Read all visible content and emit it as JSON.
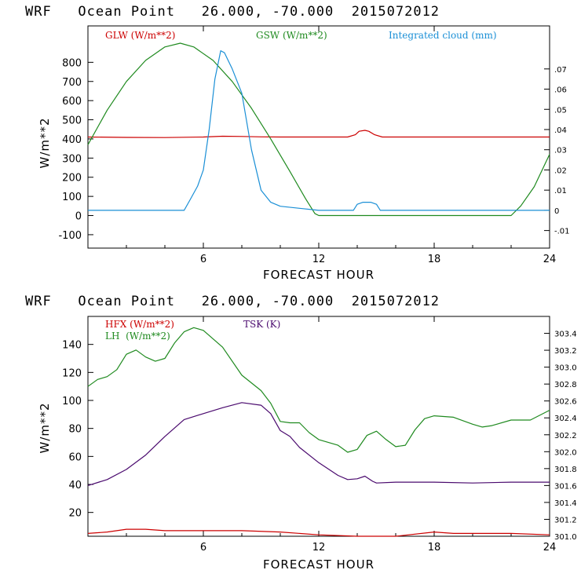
{
  "chart_data": [
    {
      "type": "line",
      "title": "WRF   Ocean Point   26.000, -70.000  2015072012",
      "xlabel": "FORECAST HOUR",
      "ylabel": "W/m**2",
      "xlim": [
        0,
        24
      ],
      "ylim": [
        -170,
        990
      ],
      "x_ticks": [
        6,
        12,
        18,
        24
      ],
      "y_ticks": [
        -100,
        0,
        100,
        200,
        300,
        400,
        500,
        600,
        700,
        800
      ],
      "y2lim": [
        -0.0187,
        0.0913
      ],
      "y2_ticks": [
        -0.01,
        0,
        0.01,
        0.02,
        0.03,
        0.04,
        0.05,
        0.06,
        0.07
      ],
      "y2_tick_labels": [
        "-.01",
        "0",
        ".01",
        ".02",
        ".03",
        ".04",
        ".05",
        ".06",
        ".07"
      ],
      "series": [
        {
          "name": "GLW (W/m**2)",
          "color": "#cc0000",
          "axis": "left",
          "points": [
            [
              0,
              410
            ],
            [
              2,
              408
            ],
            [
              4,
              407
            ],
            [
              6,
              410
            ],
            [
              7,
              414
            ],
            [
              8,
              413
            ],
            [
              9,
              411
            ],
            [
              10,
              410
            ],
            [
              12,
              410
            ],
            [
              13.5,
              410
            ],
            [
              13.9,
              422
            ],
            [
              14.1,
              440
            ],
            [
              14.4,
              445
            ],
            [
              14.6,
              440
            ],
            [
              14.9,
              422
            ],
            [
              15.3,
              410
            ],
            [
              18,
              410
            ],
            [
              20,
              410
            ],
            [
              22,
              410
            ],
            [
              24,
              410
            ]
          ]
        },
        {
          "name": "GSW (W/m**2)",
          "color": "#1f8a1f",
          "axis": "left",
          "points": [
            [
              0,
              370
            ],
            [
              1,
              550
            ],
            [
              2,
              700
            ],
            [
              3,
              810
            ],
            [
              4,
              880
            ],
            [
              4.8,
              900
            ],
            [
              5.5,
              880
            ],
            [
              6.5,
              810
            ],
            [
              7.5,
              700
            ],
            [
              8.5,
              560
            ],
            [
              9.5,
              400
            ],
            [
              10.5,
              230
            ],
            [
              11.3,
              90
            ],
            [
              11.8,
              10
            ],
            [
              12,
              0
            ],
            [
              22,
              0
            ],
            [
              22.5,
              50
            ],
            [
              23.2,
              150
            ],
            [
              24,
              320
            ]
          ]
        },
        {
          "name": "Integrated cloud (mm)",
          "color": "#1a8fd6",
          "axis": "right",
          "points": [
            [
              0,
              0
            ],
            [
              5,
              0
            ],
            [
              5.3,
              0.005
            ],
            [
              5.7,
              0.012
            ],
            [
              6,
              0.02
            ],
            [
              6.3,
              0.04
            ],
            [
              6.6,
              0.065
            ],
            [
              6.9,
              0.079
            ],
            [
              7.1,
              0.078
            ],
            [
              7.5,
              0.07
            ],
            [
              8,
              0.058
            ],
            [
              8.5,
              0.03
            ],
            [
              9,
              0.01
            ],
            [
              9.5,
              0.004
            ],
            [
              10,
              0.002
            ],
            [
              11,
              0.001
            ],
            [
              12,
              0
            ],
            [
              13.8,
              0
            ],
            [
              14,
              0.003
            ],
            [
              14.3,
              0.004
            ],
            [
              14.7,
              0.004
            ],
            [
              15,
              0.003
            ],
            [
              15.2,
              0
            ],
            [
              24,
              0
            ]
          ]
        }
      ]
    },
    {
      "type": "line",
      "title": "WRF   Ocean Point   26.000, -70.000  2015072012",
      "xlabel": "FORECAST HOUR",
      "ylabel": "W/m**2",
      "xlim": [
        0,
        24
      ],
      "ylim": [
        3,
        160
      ],
      "x_ticks": [
        6,
        12,
        18,
        24
      ],
      "y_ticks": [
        20,
        40,
        60,
        80,
        100,
        120,
        140
      ],
      "y2lim": [
        301.0,
        303.6
      ],
      "y2_ticks": [
        301.0,
        301.2,
        301.4,
        301.6,
        301.8,
        302.0,
        302.2,
        302.4,
        302.6,
        302.8,
        303.0,
        303.2,
        303.4
      ],
      "y2_tick_labels": [
        "301.0",
        "301.2",
        "301.4",
        "301.6",
        "301.8",
        "302.0",
        "302.2",
        "302.4",
        "302.6",
        "302.8",
        "303.0",
        "303.2",
        "303.4"
      ],
      "series": [
        {
          "name": "HFX (W/m**2)",
          "color": "#cc0000",
          "axis": "left",
          "points": [
            [
              0,
              5
            ],
            [
              1,
              6
            ],
            [
              2,
              8
            ],
            [
              3,
              8
            ],
            [
              4,
              7
            ],
            [
              6,
              7
            ],
            [
              8,
              7
            ],
            [
              10,
              6
            ],
            [
              12,
              4
            ],
            [
              14,
              3
            ],
            [
              16,
              3
            ],
            [
              18,
              6
            ],
            [
              19,
              5
            ],
            [
              20,
              5
            ],
            [
              22,
              5
            ],
            [
              24,
              4
            ]
          ]
        },
        {
          "name": "LH  (W/m**2)",
          "color": "#1f8a1f",
          "axis": "left",
          "points": [
            [
              0,
              110
            ],
            [
              0.5,
              115
            ],
            [
              1,
              117
            ],
            [
              1.5,
              122
            ],
            [
              2,
              133
            ],
            [
              2.5,
              136
            ],
            [
              3,
              131
            ],
            [
              3.5,
              128
            ],
            [
              4,
              130
            ],
            [
              4.5,
              141
            ],
            [
              5,
              149
            ],
            [
              5.5,
              152
            ],
            [
              6,
              150
            ],
            [
              7,
              138
            ],
            [
              8,
              118
            ],
            [
              9,
              107
            ],
            [
              9.5,
              98
            ],
            [
              10,
              85
            ],
            [
              10.5,
              84
            ],
            [
              11,
              84
            ],
            [
              11.5,
              77
            ],
            [
              12,
              72
            ],
            [
              13,
              68
            ],
            [
              13.5,
              63
            ],
            [
              14,
              65
            ],
            [
              14.5,
              75
            ],
            [
              15,
              78
            ],
            [
              15.5,
              72
            ],
            [
              16,
              67
            ],
            [
              16.5,
              68
            ],
            [
              17,
              79
            ],
            [
              17.5,
              87
            ],
            [
              18,
              89
            ],
            [
              19,
              88
            ],
            [
              20,
              83
            ],
            [
              20.5,
              81
            ],
            [
              21,
              82
            ],
            [
              22,
              86
            ],
            [
              23,
              86
            ],
            [
              24,
              93
            ]
          ]
        },
        {
          "name": "TSK (K)",
          "color": "#4a0a6e",
          "axis": "right",
          "points": [
            [
              0,
              301.6
            ],
            [
              1,
              301.67
            ],
            [
              2,
              301.79
            ],
            [
              3,
              301.96
            ],
            [
              4,
              302.18
            ],
            [
              5,
              302.38
            ],
            [
              6,
              302.45
            ],
            [
              7,
              302.52
            ],
            [
              8,
              302.58
            ],
            [
              9,
              302.55
            ],
            [
              9.5,
              302.45
            ],
            [
              10,
              302.25
            ],
            [
              10.5,
              302.18
            ],
            [
              11,
              302.05
            ],
            [
              12,
              301.87
            ],
            [
              13,
              301.72
            ],
            [
              13.5,
              301.67
            ],
            [
              14,
              301.68
            ],
            [
              14.4,
              301.71
            ],
            [
              14.8,
              301.65
            ],
            [
              15,
              301.63
            ],
            [
              16,
              301.64
            ],
            [
              18,
              301.64
            ],
            [
              20,
              301.63
            ],
            [
              22,
              301.64
            ],
            [
              24,
              301.64
            ]
          ]
        }
      ]
    }
  ]
}
